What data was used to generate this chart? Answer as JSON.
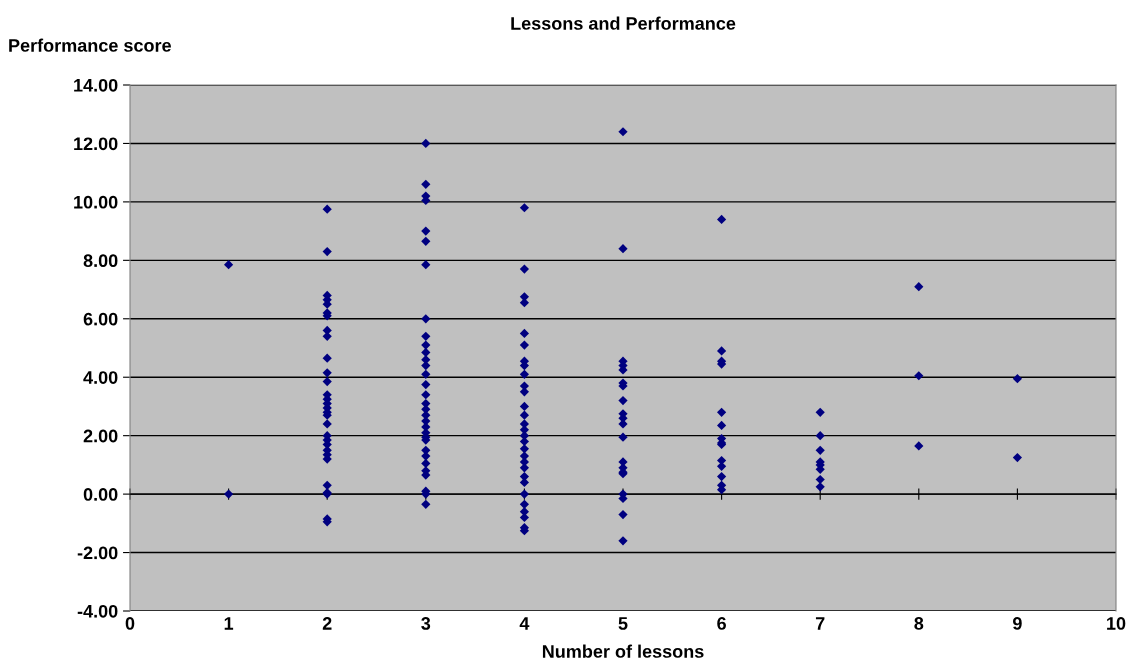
{
  "chart_data": {
    "type": "scatter",
    "title": "Lessons and Performance",
    "xlabel": "Number of lessons",
    "ylabel": "Performance score",
    "marker": "diamond",
    "grid": "y",
    "legend": false,
    "xlim": [
      0,
      10
    ],
    "xticks": [
      0,
      1,
      2,
      3,
      4,
      5,
      6,
      7,
      8,
      9,
      10
    ],
    "ylim": [
      -4,
      14
    ],
    "yticks": [
      {
        "value": -4,
        "label": "-4.00"
      },
      {
        "value": -2,
        "label": "-2.00"
      },
      {
        "value": 0,
        "label": "0.00"
      },
      {
        "value": 2,
        "label": "2.00"
      },
      {
        "value": 4,
        "label": "4.00"
      },
      {
        "value": 6,
        "label": "6.00"
      },
      {
        "value": 8,
        "label": "8.00"
      },
      {
        "value": 10,
        "label": "10.00"
      },
      {
        "value": 12,
        "label": "12.00"
      },
      {
        "value": 14,
        "label": "14.00"
      }
    ],
    "series": [
      {
        "color": "#000080",
        "x": [
          1,
          1,
          2,
          2,
          2,
          2,
          2,
          2,
          2,
          2,
          2,
          2,
          2,
          2,
          2,
          2,
          2,
          2,
          2,
          2,
          2,
          2,
          2,
          2,
          2,
          2,
          2,
          2,
          2,
          2,
          2,
          2,
          3,
          3,
          3,
          3,
          3,
          3,
          3,
          3,
          3,
          3,
          3,
          3,
          3,
          3,
          3,
          3,
          3,
          3,
          3,
          3,
          3,
          3,
          3,
          3,
          3,
          3,
          3,
          3,
          3,
          3,
          3,
          3,
          4,
          4,
          4,
          4,
          4,
          4,
          4,
          4,
          4,
          4,
          4,
          4,
          4,
          4,
          4,
          4,
          4,
          4,
          4,
          4,
          4,
          4,
          4,
          4,
          4,
          4,
          4,
          4,
          4,
          5,
          5,
          5,
          5,
          5,
          5,
          5,
          5,
          5,
          5,
          5,
          5,
          5,
          5,
          5,
          5,
          5,
          5,
          5,
          5,
          6,
          6,
          6,
          6,
          6,
          6,
          6,
          6,
          6,
          6,
          6,
          6,
          6,
          6,
          7,
          7,
          7,
          7,
          7,
          7,
          7,
          7,
          8,
          8,
          8,
          9,
          9
        ],
        "values": [
          7.85,
          0,
          9.75,
          8.3,
          6.8,
          6.65,
          6.5,
          6.2,
          6.1,
          5.6,
          5.4,
          4.65,
          4.15,
          3.85,
          3.4,
          3.25,
          3.1,
          2.95,
          2.8,
          2.7,
          2.4,
          2.0,
          1.85,
          1.7,
          1.5,
          1.35,
          1.2,
          0.3,
          0.05,
          0,
          -0.85,
          -0.95,
          12.0,
          10.6,
          10.2,
          10.05,
          9.0,
          8.65,
          7.85,
          6.0,
          5.4,
          5.1,
          4.85,
          4.6,
          4.4,
          4.1,
          3.75,
          3.4,
          3.1,
          2.9,
          2.7,
          2.5,
          2.3,
          2.1,
          1.95,
          1.85,
          1.5,
          1.3,
          1.05,
          0.8,
          0.65,
          0.1,
          0,
          -0.35,
          9.8,
          7.7,
          6.75,
          6.55,
          5.5,
          5.1,
          4.55,
          4.4,
          4.1,
          3.7,
          3.5,
          3.0,
          2.7,
          2.4,
          2.2,
          2.0,
          1.8,
          1.55,
          1.3,
          1.1,
          0.9,
          0.6,
          0.4,
          0,
          -0.35,
          -0.6,
          -0.8,
          -1.15,
          -1.25,
          12.4,
          8.4,
          4.55,
          4.4,
          4.25,
          3.8,
          3.7,
          3.2,
          2.75,
          2.6,
          2.4,
          1.95,
          1.1,
          0.9,
          0.75,
          0.7,
          0,
          -0.15,
          -0.7,
          -1.6,
          9.4,
          4.9,
          4.55,
          4.45,
          2.8,
          2.35,
          1.9,
          1.75,
          1.7,
          1.15,
          0.95,
          0.6,
          0.3,
          0.15,
          2.8,
          2.0,
          1.5,
          1.1,
          1.0,
          0.85,
          0.5,
          0.25,
          7.1,
          4.05,
          1.65,
          3.95,
          1.25
        ]
      }
    ]
  }
}
